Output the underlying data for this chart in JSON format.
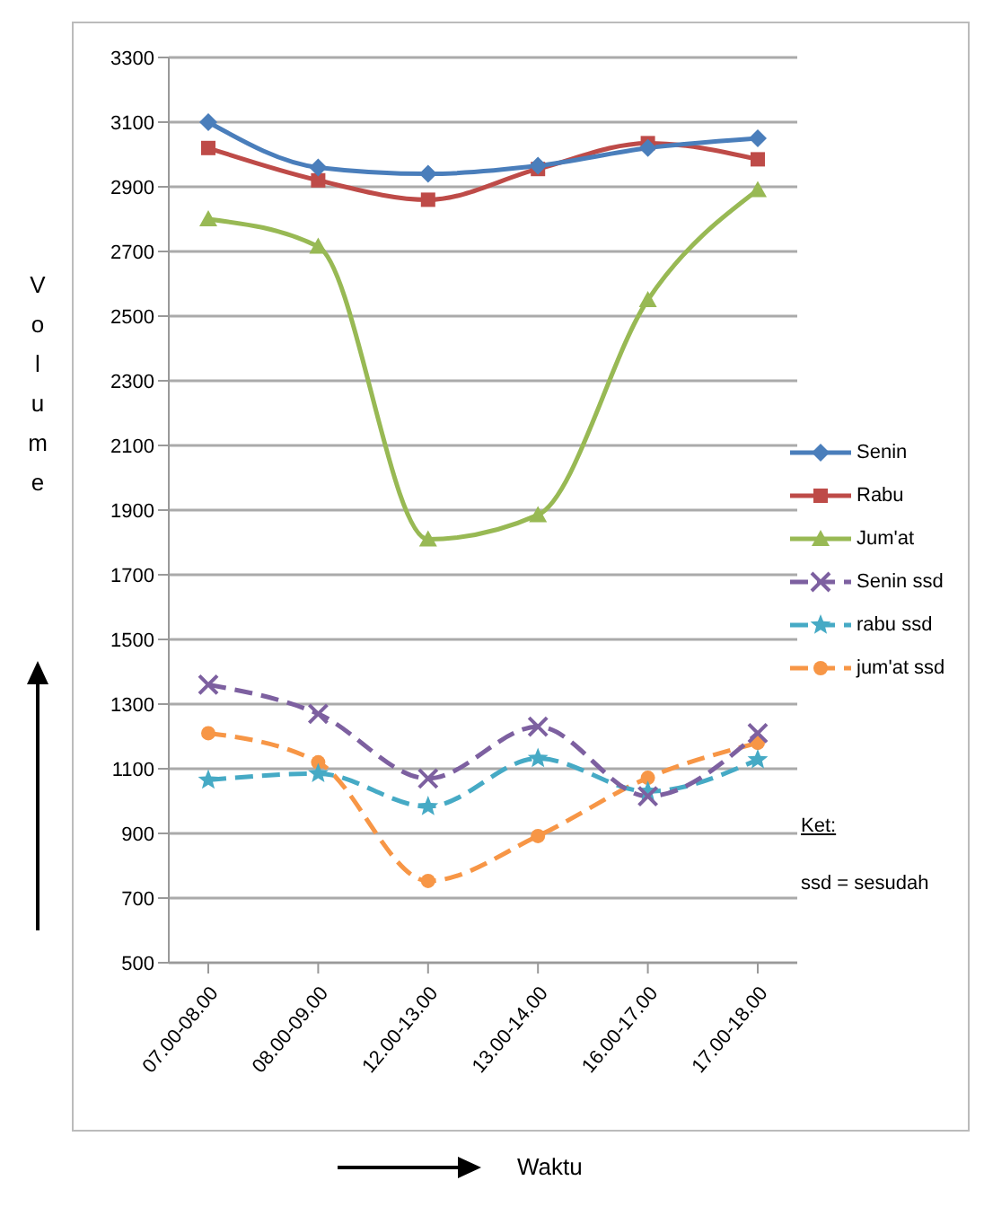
{
  "chart_data": {
    "type": "line",
    "xlabel": "Waktu",
    "ylabel": "Volume",
    "categories": [
      "07.00-08.00",
      "08.00-09.00",
      "12.00-13.00",
      "13.00-14.00",
      "16.00-17.00",
      "17.00-18.00"
    ],
    "series": [
      {
        "name": "Senin",
        "color": "#4a7ebb",
        "marker": "diamond",
        "line_style": "solid",
        "values": [
          3100,
          2960,
          2940,
          2965,
          3020,
          3050
        ]
      },
      {
        "name": "Rabu",
        "color": "#be4b48",
        "marker": "square",
        "line_style": "solid",
        "values": [
          3020,
          2920,
          2860,
          2955,
          3035,
          2985
        ]
      },
      {
        "name": "Jum'at",
        "color": "#98b954",
        "marker": "triangle",
        "line_style": "solid",
        "values": [
          2800,
          2715,
          1810,
          1885,
          2550,
          2890
        ]
      },
      {
        "name": "Senin ssd",
        "color": "#7d60a0",
        "marker": "cross",
        "line_style": "dashed",
        "values": [
          1360,
          1270,
          1070,
          1230,
          1015,
          1210
        ]
      },
      {
        "name": "rabu ssd",
        "color": "#46aac5",
        "marker": "star",
        "line_style": "dashed",
        "values": [
          1065,
          1085,
          983,
          1132,
          1030,
          1128
        ]
      },
      {
        "name": "jum'at ssd",
        "color": "#f79646",
        "marker": "circle",
        "line_style": "dashed",
        "values": [
          1210,
          1120,
          753,
          892,
          1072,
          1180
        ]
      }
    ],
    "ylim": [
      500,
      3300
    ],
    "yticks": [
      500,
      700,
      900,
      1100,
      1300,
      1500,
      1700,
      1900,
      2100,
      2300,
      2500,
      2700,
      2900,
      3100,
      3300
    ],
    "grid": "y",
    "legend": "right",
    "annotations": [
      "Ket:",
      "ssd = sesudah"
    ]
  }
}
